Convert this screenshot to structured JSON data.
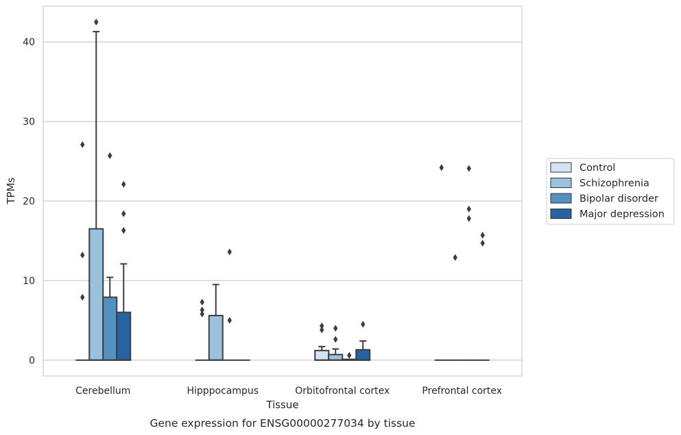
{
  "chart_data": {
    "type": "box",
    "caption": "Gene expression for ENSG00000277034 by tissue",
    "xlabel": "Tissue",
    "ylabel": "TPMs",
    "ylim": [
      -2,
      44.5
    ],
    "yticks": [
      0,
      10,
      20,
      30,
      40
    ],
    "grid": true,
    "legend_position": "right",
    "categories": [
      "Cerebellum",
      "Hipppocampus",
      "Orbitofrontal cortex",
      "Prefrontal cortex"
    ],
    "series": [
      {
        "name": "Control",
        "color": "#d4e3f1",
        "boxes": [
          {
            "q1": 0,
            "median": 0,
            "q3": 0,
            "whisker_low": 0,
            "whisker_high": 0,
            "outliers": [
              27.1,
              13.2,
              7.9
            ]
          },
          {
            "q1": 0,
            "median": 0,
            "q3": 0,
            "whisker_low": 0,
            "whisker_high": 0,
            "outliers": [
              7.3,
              6.3,
              5.8
            ]
          },
          {
            "q1": 0,
            "median": 0,
            "q3": 1.2,
            "whisker_low": 0,
            "whisker_high": 1.7,
            "outliers": [
              4.3,
              3.8
            ]
          },
          {
            "q1": 0,
            "median": 0,
            "q3": 0,
            "whisker_low": 0,
            "whisker_high": 0,
            "outliers": [
              24.2
            ]
          }
        ]
      },
      {
        "name": "Schizophrenia",
        "color": "#9ac2dd",
        "boxes": [
          {
            "q1": 0,
            "median": 0,
            "q3": 16.5,
            "whisker_low": 0,
            "whisker_high": 41.3,
            "outliers": [
              42.5
            ]
          },
          {
            "q1": 0,
            "median": 0,
            "q3": 5.6,
            "whisker_low": 0,
            "whisker_high": 9.5,
            "outliers": []
          },
          {
            "q1": 0,
            "median": 0,
            "q3": 0.7,
            "whisker_low": 0,
            "whisker_high": 1.4,
            "outliers": [
              4.0,
              2.6
            ]
          },
          {
            "q1": 0,
            "median": 0,
            "q3": 0,
            "whisker_low": 0,
            "whisker_high": 0,
            "outliers": [
              12.9
            ]
          }
        ]
      },
      {
        "name": "Bipolar disorder",
        "color": "#5391c1",
        "boxes": [
          {
            "q1": 0,
            "median": 0,
            "q3": 7.9,
            "whisker_low": 0,
            "whisker_high": 10.4,
            "outliers": [
              25.7
            ]
          },
          {
            "q1": 0,
            "median": 0,
            "q3": 0,
            "whisker_low": 0,
            "whisker_high": 0,
            "outliers": [
              13.6,
              5.0
            ]
          },
          {
            "q1": 0,
            "median": 0,
            "q3": 0.1,
            "whisker_low": 0,
            "whisker_high": 0.1,
            "outliers": [
              0.6
            ]
          },
          {
            "q1": 0,
            "median": 0,
            "q3": 0,
            "whisker_low": 0,
            "whisker_high": 0,
            "outliers": [
              24.1,
              19.0,
              17.8
            ]
          }
        ]
      },
      {
        "name": "Major depression",
        "color": "#2563a3",
        "boxes": [
          {
            "q1": 0,
            "median": 0,
            "q3": 6.0,
            "whisker_low": 0,
            "whisker_high": 12.1,
            "outliers": [
              22.1,
              18.4,
              16.3
            ]
          },
          {
            "q1": 0,
            "median": 0,
            "q3": 0,
            "whisker_low": 0,
            "whisker_high": 0,
            "outliers": []
          },
          {
            "q1": 0,
            "median": 0,
            "q3": 1.3,
            "whisker_low": 0,
            "whisker_high": 2.4,
            "outliers": [
              4.5
            ]
          },
          {
            "q1": 0,
            "median": 0,
            "q3": 0,
            "whisker_low": 0,
            "whisker_high": 0,
            "outliers": [
              15.7,
              14.7
            ]
          }
        ]
      }
    ]
  }
}
